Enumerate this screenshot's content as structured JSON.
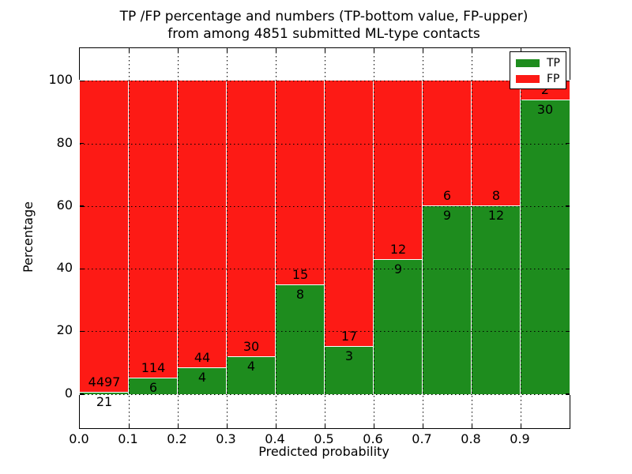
{
  "figure": {
    "title_line1": "TP /FP percentage and numbers (TP-bottom value, FP-upper)",
    "title_line2": "from among 4851 submitted ML-type contacts"
  },
  "chart_data": {
    "type": "bar",
    "variant": "stacked-percentage",
    "title": "TP /FP percentage and numbers (TP-bottom value, FP-upper)\nfrom among 4851 submitted ML-type contacts",
    "xlabel": "Predicted probability",
    "ylabel": "Percentage",
    "total_contacts": 4851,
    "xlim": [
      0.0,
      1.0
    ],
    "ylim": [
      -10.9,
      110.4
    ],
    "x_ticks": [
      "0.0",
      "0.1",
      "0.2",
      "0.3",
      "0.4",
      "0.5",
      "0.6",
      "0.7",
      "0.8",
      "0.9"
    ],
    "y_ticks": [
      0,
      20,
      40,
      60,
      80,
      100
    ],
    "grid": "dotted",
    "legend_position": "upper-right",
    "series": [
      {
        "name": "TP",
        "color": "#1e8c1e"
      },
      {
        "name": "FP",
        "color": "#fd1a15"
      }
    ],
    "bins": [
      {
        "range": [
          0.0,
          0.1
        ],
        "tp": 21,
        "fp": 4497
      },
      {
        "range": [
          0.1,
          0.2
        ],
        "tp": 6,
        "fp": 114
      },
      {
        "range": [
          0.2,
          0.3
        ],
        "tp": 4,
        "fp": 44
      },
      {
        "range": [
          0.3,
          0.4
        ],
        "tp": 4,
        "fp": 30
      },
      {
        "range": [
          0.4,
          0.5
        ],
        "tp": 8,
        "fp": 15
      },
      {
        "range": [
          0.5,
          0.6
        ],
        "tp": 3,
        "fp": 17
      },
      {
        "range": [
          0.6,
          0.7
        ],
        "tp": 9,
        "fp": 12
      },
      {
        "range": [
          0.7,
          0.8
        ],
        "tp": 9,
        "fp": 6
      },
      {
        "range": [
          0.8,
          0.9
        ],
        "tp": 12,
        "fp": 8
      },
      {
        "range": [
          0.9,
          1.0
        ],
        "tp": 30,
        "fp": 2
      }
    ]
  }
}
